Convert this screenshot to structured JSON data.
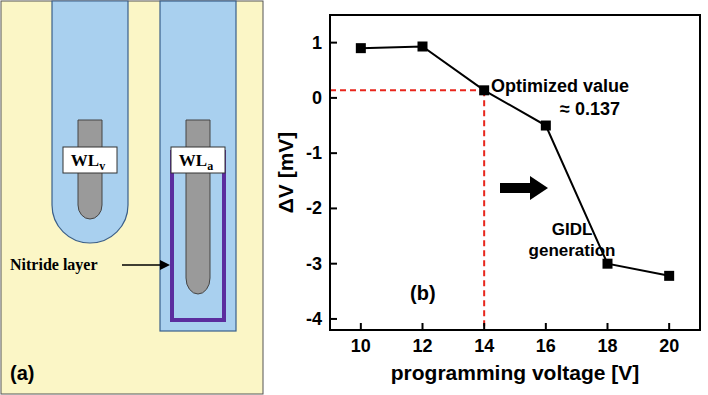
{
  "diagram": {
    "panel_label": "(a)",
    "wordlines": [
      {
        "text": "WL",
        "subscript": "v"
      },
      {
        "text": "WL",
        "subscript": "a"
      }
    ],
    "nitride_label": "Nitride layer"
  },
  "chart_data": {
    "type": "line",
    "panel_label": "(b)",
    "x_label": "programming voltage [V]",
    "y_label": "ΔV [mV]",
    "x": [
      10,
      12,
      14,
      16,
      18,
      20
    ],
    "values": [
      0.9,
      0.93,
      0.137,
      -0.5,
      -3.0,
      -3.22
    ],
    "color": "#000000",
    "marker": "square",
    "line_style": "solid",
    "xlim": [
      9,
      21
    ],
    "xticks": [
      10,
      12,
      14,
      16,
      18,
      20
    ],
    "ylim": [
      -4.2,
      1.5
    ],
    "yticks": [
      -4,
      -3,
      -2,
      -1,
      0,
      1
    ],
    "highlight": {
      "x": 14,
      "y": 0.137,
      "color": "#e8261c"
    },
    "annotations": [
      {
        "lines": [
          "Optimized value"
        ]
      },
      {
        "lines": [
          "≈ 0.137"
        ]
      },
      {
        "lines": [
          "GIDL",
          "generation"
        ]
      }
    ]
  }
}
